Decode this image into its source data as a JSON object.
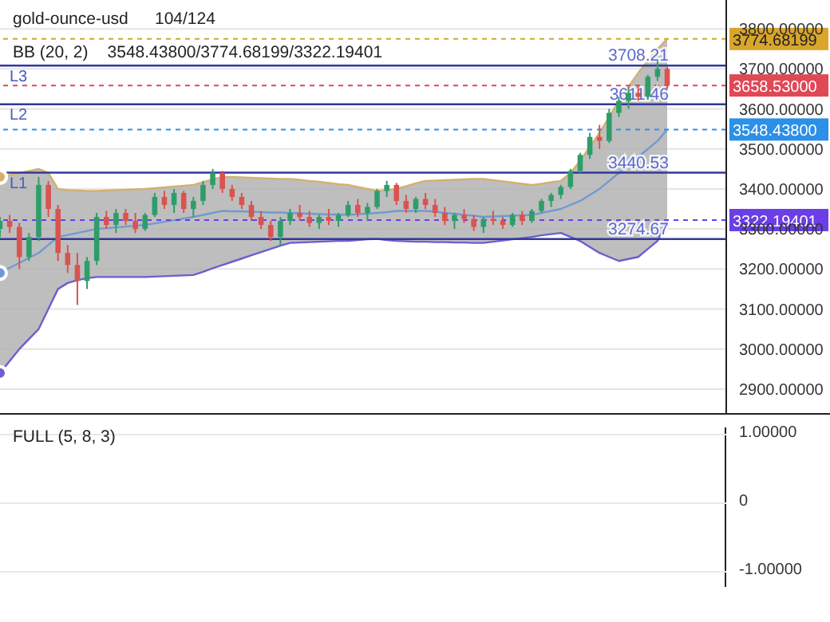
{
  "chart_data": [
    {
      "type": "candlestick",
      "title": "gold-ounce-usd",
      "subtitle": "104/124",
      "annotations": [
        "BB (20, 2)",
        "3548.43800/3774.68199/3322.19401",
        {
          "text": "L3",
          "y": 3708.21
        },
        {
          "text": "L2",
          "y": 3611.46
        },
        {
          "text": "L1",
          "y": 3440.53
        }
      ],
      "categories": [
        null,
        null,
        null,
        null,
        null,
        null,
        null,
        null,
        null,
        null,
        null,
        null,
        null,
        null,
        null,
        null,
        null,
        null,
        null,
        null,
        null,
        null,
        null,
        null,
        null,
        null,
        null,
        null,
        null,
        null,
        null,
        null,
        null,
        null,
        null,
        null,
        null,
        null,
        null,
        null,
        null,
        null,
        null,
        null,
        null,
        null,
        null,
        null,
        null,
        null,
        null,
        null,
        null,
        null,
        null,
        null,
        null,
        null,
        null,
        null,
        null,
        null,
        null,
        null,
        null,
        null,
        null,
        null,
        null,
        null
      ],
      "ohlc": [
        [
          3300,
          3330,
          3280,
          3320
        ],
        [
          3320,
          3335,
          3290,
          3305
        ],
        [
          3305,
          3315,
          3200,
          3230
        ],
        [
          3230,
          3290,
          3220,
          3280
        ],
        [
          3280,
          3430,
          3270,
          3410
        ],
        [
          3410,
          3420,
          3330,
          3350
        ],
        [
          3350,
          3360,
          3220,
          3240
        ],
        [
          3240,
          3260,
          3190,
          3210
        ],
        [
          3210,
          3240,
          3110,
          3170
        ],
        [
          3170,
          3230,
          3150,
          3220
        ],
        [
          3220,
          3340,
          3210,
          3330
        ],
        [
          3330,
          3345,
          3300,
          3310
        ],
        [
          3310,
          3350,
          3290,
          3340
        ],
        [
          3340,
          3350,
          3310,
          3320
        ],
        [
          3320,
          3340,
          3290,
          3300
        ],
        [
          3300,
          3340,
          3295,
          3335
        ],
        [
          3335,
          3390,
          3330,
          3380
        ],
        [
          3380,
          3395,
          3350,
          3360
        ],
        [
          3360,
          3400,
          3340,
          3390
        ],
        [
          3390,
          3395,
          3340,
          3350
        ],
        [
          3350,
          3380,
          3330,
          3370
        ],
        [
          3370,
          3420,
          3360,
          3410
        ],
        [
          3410,
          3450,
          3400,
          3440
        ],
        [
          3440,
          3445,
          3390,
          3400
        ],
        [
          3400,
          3410,
          3370,
          3380
        ],
        [
          3380,
          3390,
          3350,
          3360
        ],
        [
          3360,
          3370,
          3320,
          3330
        ],
        [
          3330,
          3345,
          3300,
          3310
        ],
        [
          3310,
          3320,
          3270,
          3280
        ],
        [
          3280,
          3330,
          3260,
          3320
        ],
        [
          3320,
          3350,
          3310,
          3340
        ],
        [
          3340,
          3360,
          3320,
          3330
        ],
        [
          3330,
          3345,
          3305,
          3315
        ],
        [
          3315,
          3335,
          3300,
          3330
        ],
        [
          3330,
          3350,
          3310,
          3320
        ],
        [
          3320,
          3340,
          3305,
          3335
        ],
        [
          3335,
          3370,
          3330,
          3360
        ],
        [
          3360,
          3375,
          3330,
          3340
        ],
        [
          3340,
          3365,
          3320,
          3355
        ],
        [
          3355,
          3400,
          3350,
          3395
        ],
        [
          3395,
          3420,
          3380,
          3410
        ],
        [
          3410,
          3415,
          3360,
          3370
        ],
        [
          3370,
          3385,
          3340,
          3350
        ],
        [
          3350,
          3380,
          3340,
          3375
        ],
        [
          3375,
          3390,
          3350,
          3360
        ],
        [
          3360,
          3375,
          3330,
          3340
        ],
        [
          3340,
          3355,
          3310,
          3320
        ],
        [
          3320,
          3340,
          3300,
          3335
        ],
        [
          3335,
          3350,
          3315,
          3325
        ],
        [
          3325,
          3335,
          3295,
          3305
        ],
        [
          3305,
          3330,
          3290,
          3325
        ],
        [
          3325,
          3345,
          3310,
          3320
        ],
        [
          3320,
          3330,
          3300,
          3310
        ],
        [
          3310,
          3340,
          3305,
          3335
        ],
        [
          3335,
          3345,
          3310,
          3320
        ],
        [
          3320,
          3350,
          3315,
          3345
        ],
        [
          3345,
          3375,
          3340,
          3370
        ],
        [
          3370,
          3390,
          3355,
          3385
        ],
        [
          3385,
          3410,
          3375,
          3405
        ],
        [
          3405,
          3450,
          3400,
          3445
        ],
        [
          3445,
          3490,
          3440,
          3485
        ],
        [
          3485,
          3540,
          3475,
          3530
        ],
        [
          3530,
          3560,
          3500,
          3520
        ],
        [
          3520,
          3600,
          3515,
          3590
        ],
        [
          3590,
          3630,
          3580,
          3620
        ],
        [
          3620,
          3655,
          3600,
          3640
        ],
        [
          3640,
          3660,
          3620,
          3630
        ],
        [
          3630,
          3685,
          3625,
          3680
        ],
        [
          3680,
          3720,
          3670,
          3700
        ],
        [
          3700,
          3705,
          3650,
          3658.53
        ]
      ],
      "series": [
        {
          "type": "line",
          "color": "#d4b06a",
          "values": [
            3430,
            3435,
            3440,
            3445,
            3450,
            3440,
            3400,
            3397,
            3396,
            3395,
            3395,
            3396,
            3397,
            3398,
            3399,
            3400,
            3402,
            3404,
            3406,
            3408,
            3410,
            3417,
            3424,
            3430,
            3430,
            3429,
            3428,
            3427,
            3426,
            3425,
            3425,
            3423,
            3420,
            3418,
            3415,
            3412,
            3410,
            3405,
            3400,
            3395,
            3397,
            3400,
            3407,
            3414,
            3420,
            3421,
            3422,
            3423,
            3424,
            3425,
            3425,
            3422,
            3419,
            3416,
            3413,
            3410,
            3413,
            3417,
            3420,
            3440,
            3470,
            3505,
            3540,
            3580,
            3620,
            3655,
            3690,
            3720,
            3750,
            3775
          ]
        },
        {
          "type": "line",
          "color": "#6a5fd0",
          "values": [
            2940,
            2970,
            3000,
            3025,
            3050,
            3100,
            3150,
            3165,
            3172,
            3177,
            3180,
            3180,
            3180,
            3180,
            3180,
            3180,
            3181,
            3182,
            3183,
            3184,
            3185,
            3193,
            3202,
            3210,
            3218,
            3226,
            3234,
            3242,
            3250,
            3258,
            3265,
            3266,
            3267,
            3268,
            3269,
            3270,
            3270,
            3272,
            3274,
            3275,
            3272,
            3270,
            3269,
            3268,
            3268,
            3267,
            3267,
            3266,
            3266,
            3265,
            3265,
            3268,
            3271,
            3274,
            3277,
            3280,
            3284,
            3287,
            3290,
            3280,
            3270,
            3255,
            3240,
            3230,
            3220,
            3225,
            3230,
            3250,
            3270,
            3322
          ]
        },
        {
          "type": "line",
          "color": "#6f9bd1",
          "values": [
            3190,
            3203,
            3215,
            3228,
            3240,
            3260,
            3280,
            3285,
            3290,
            3295,
            3300,
            3302,
            3304,
            3306,
            3308,
            3310,
            3314,
            3318,
            3322,
            3326,
            3330,
            3335,
            3340,
            3345,
            3344,
            3344,
            3343,
            3342,
            3341,
            3341,
            3340,
            3339,
            3338,
            3337,
            3336,
            3336,
            3335,
            3337,
            3338,
            3340,
            3342,
            3345,
            3345,
            3345,
            3345,
            3343,
            3340,
            3338,
            3335,
            3333,
            3330,
            3331,
            3332,
            3333,
            3334,
            3335,
            3340,
            3345,
            3350,
            3360,
            3370,
            3385,
            3400,
            3420,
            3440,
            3460,
            3480,
            3500,
            3520,
            3548
          ],
          "lower": [
            2940,
            2970,
            3000,
            3025,
            3050,
            3100,
            3150,
            3165,
            3172,
            3177,
            3180,
            3180,
            3180,
            3180,
            3180,
            3180,
            3181,
            3182,
            3183,
            3184,
            3185,
            3193,
            3202,
            3210,
            3218,
            3226,
            3234,
            3242,
            3250,
            3258,
            3265,
            3266,
            3267,
            3268,
            3269,
            3270,
            3270,
            3272,
            3274,
            3275,
            3272,
            3270,
            3269,
            3268,
            3268,
            3267,
            3267,
            3266,
            3266,
            3265,
            3265,
            3268,
            3271,
            3274,
            3277,
            3280,
            3284,
            3287,
            3290,
            3280,
            3270,
            3255,
            3240,
            3230,
            3220,
            3225,
            3230,
            3250,
            3270,
            3322
          ],
          "upper": [
            3430,
            3435,
            3440,
            3445,
            3450,
            3440,
            3400,
            3397,
            3396,
            3395,
            3395,
            3396,
            3397,
            3398,
            3399,
            3400,
            3402,
            3404,
            3406,
            3408,
            3410,
            3417,
            3424,
            3430,
            3430,
            3429,
            3428,
            3427,
            3426,
            3425,
            3425,
            3423,
            3420,
            3418,
            3415,
            3412,
            3410,
            3405,
            3400,
            3395,
            3397,
            3400,
            3407,
            3414,
            3420,
            3421,
            3422,
            3423,
            3424,
            3425,
            3425,
            3422,
            3419,
            3416,
            3413,
            3410,
            3413,
            3417,
            3420,
            3440,
            3470,
            3505,
            3540,
            3580,
            3620,
            3655,
            3690,
            3720,
            3750,
            3775
          ]
        }
      ],
      "ref_lines": [
        {
          "axis": "y",
          "value": 3774.68199,
          "label": "3774.68199",
          "color": "#d9a52b",
          "line_style": "dashed"
        },
        {
          "axis": "y",
          "value": 3708.21,
          "label": "3708.21",
          "color": "#33379a",
          "line_style": "solid"
        },
        {
          "axis": "y",
          "value": 3658.53,
          "label": "3658.53000",
          "color": "#e04856",
          "line_style": "dashed"
        },
        {
          "axis": "y",
          "value": 3611.46,
          "label": "3611.46",
          "color": "#33379a",
          "line_style": "solid"
        },
        {
          "axis": "y",
          "value": 3548.438,
          "label": "3548.43800",
          "color": "#2c8fe8",
          "line_style": "dashed"
        },
        {
          "axis": "y",
          "value": 3440.53,
          "label": "3440.53",
          "color": "#33379a",
          "line_style": "solid"
        },
        {
          "axis": "y",
          "value": 3322.19401,
          "label": "3322.19401",
          "color": "#6b3ee6",
          "line_style": "dashed"
        },
        {
          "axis": "y",
          "value": 3274.67,
          "label": "3274.67",
          "color": "#33379a",
          "line_style": "solid"
        }
      ],
      "ylim": [
        2836,
        3872
      ],
      "yticks": [
        {
          "value": 2900,
          "label": "2900.00000"
        },
        {
          "value": 3000,
          "label": "3000.00000"
        },
        {
          "value": 3100,
          "label": "3100.00000"
        },
        {
          "value": 3200,
          "label": "3200.00000"
        },
        {
          "value": 3300,
          "label": "3300.00000"
        },
        {
          "value": 3400,
          "label": "3400.00000"
        },
        {
          "value": 3500,
          "label": "3500.00000"
        },
        {
          "value": 3600,
          "label": "3600.00000"
        },
        {
          "value": 3700,
          "label": "3700.00000"
        },
        {
          "value": 3800,
          "label": "3800.00000"
        }
      ],
      "tick_labels": "y",
      "grid": "y"
    },
    {
      "type": "other",
      "title": "FULL (5, 8, 3)",
      "annotations": [
        "1.00000",
        "0",
        "-1.00000"
      ]
    }
  ]
}
